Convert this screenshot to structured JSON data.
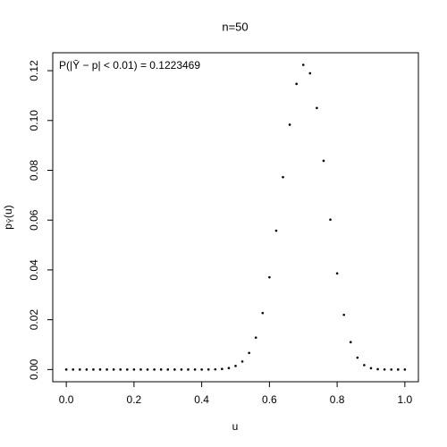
{
  "chart_data": {
    "type": "scatter",
    "title": "n=50",
    "x_label": "u",
    "y_label": {
      "main": "p",
      "sub": "Ȳ",
      "rest": "(u)"
    },
    "annotation": "P(|Ȳ − p| < 0.01) = 0.1223469",
    "color": "#000000",
    "x": [
      0,
      0.02,
      0.04,
      0.06,
      0.08,
      0.1,
      0.12,
      0.14,
      0.16,
      0.18,
      0.2,
      0.22,
      0.24,
      0.26,
      0.28,
      0.3,
      0.32,
      0.34,
      0.36,
      0.38,
      0.4,
      0.42,
      0.44,
      0.46,
      0.48,
      0.5,
      0.52,
      0.54,
      0.56,
      0.58,
      0.6,
      0.62,
      0.64,
      0.66,
      0.68,
      0.7,
      0.72,
      0.74,
      0.76,
      0.78,
      0.8,
      0.82,
      0.84,
      0.86,
      0.88,
      0.9,
      0.92,
      0.94,
      0.96,
      0.98,
      1
    ],
    "values": [
      0,
      0,
      0,
      0,
      0,
      0,
      0,
      0,
      0,
      0,
      0,
      0,
      0,
      0,
      0,
      0,
      0,
      0,
      5e-07,
      2.1e-06,
      7.7e-06,
      2.58e-05,
      7.94e-05,
      0.000225,
      0.000592,
      0.00144,
      0.00322,
      0.00668,
      0.01281,
      0.02268,
      0.03704,
      0.05576,
      0.07725,
      0.09831,
      0.1147,
      0.1223469,
      0.11895,
      0.10502,
      0.08383,
      0.06019,
      0.03862,
      0.02198,
      0.01099,
      0.00477,
      0.00177,
      0.000551,
      0.00014,
      2.78e-05,
      4.1e-06,
      4e-07,
      0
    ],
    "xlim": [
      -0.04,
      1.04
    ],
    "ylim": [
      -0.0049,
      0.1272
    ],
    "xticks": [
      {
        "value": 0,
        "label": "0.0"
      },
      {
        "value": 0.2,
        "label": "0.2"
      },
      {
        "value": 0.4,
        "label": "0.4"
      },
      {
        "value": 0.6,
        "label": "0.6"
      },
      {
        "value": 0.8,
        "label": "0.8"
      },
      {
        "value": 1,
        "label": "1.0"
      }
    ],
    "yticks": [
      {
        "value": 0,
        "label": "0.00"
      },
      {
        "value": 0.02,
        "label": "0.02"
      },
      {
        "value": 0.04,
        "label": "0.04"
      },
      {
        "value": 0.06,
        "label": "0.06"
      },
      {
        "value": 0.08,
        "label": "0.08"
      },
      {
        "value": 0.1,
        "label": "0.10"
      },
      {
        "value": 0.12,
        "label": "0.12"
      }
    ]
  }
}
